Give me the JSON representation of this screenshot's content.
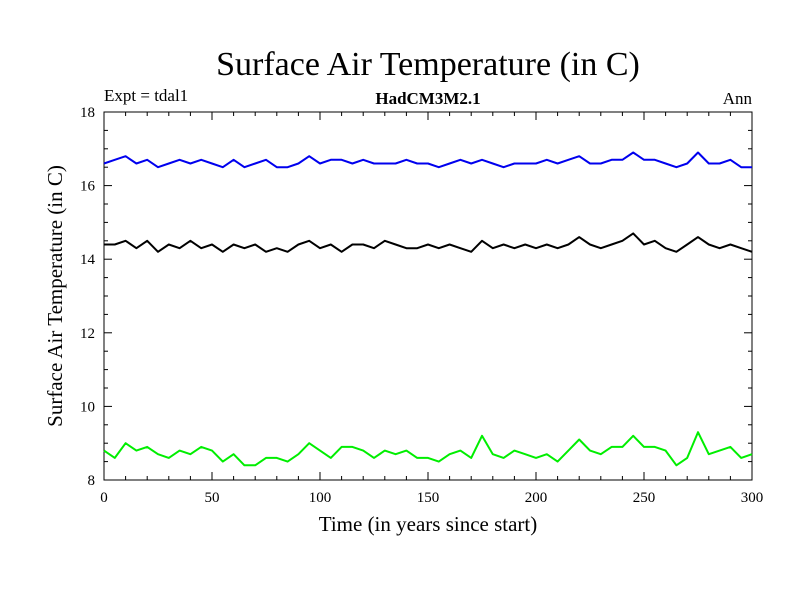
{
  "chart_data": {
    "type": "line",
    "title": "Surface Air Temperature (in C)",
    "subtitle_left": "Expt = tdal1",
    "subtitle_center": "HadCM3M2.1",
    "subtitle_right": "Ann",
    "xlabel": "Time (in years since start)",
    "ylabel": "Surface Air Temperature (in C)",
    "xlim": [
      0,
      300
    ],
    "ylim": [
      8,
      18
    ],
    "xticks": [
      0,
      50,
      100,
      150,
      200,
      250,
      300
    ],
    "yticks": [
      8,
      10,
      12,
      14,
      16,
      18
    ],
    "grid": false,
    "x": [
      0,
      5,
      10,
      15,
      20,
      25,
      30,
      35,
      40,
      45,
      50,
      55,
      60,
      65,
      70,
      75,
      80,
      85,
      90,
      95,
      100,
      105,
      110,
      115,
      120,
      125,
      130,
      135,
      140,
      145,
      150,
      155,
      160,
      165,
      170,
      175,
      180,
      185,
      190,
      195,
      200,
      205,
      210,
      215,
      220,
      225,
      230,
      235,
      240,
      245,
      250,
      255,
      260,
      265,
      270,
      275,
      280,
      285,
      290,
      295,
      300
    ],
    "series": [
      {
        "name": "upper (blue)",
        "color": "#0000ee",
        "values": [
          16.6,
          16.7,
          16.8,
          16.6,
          16.7,
          16.5,
          16.6,
          16.7,
          16.6,
          16.7,
          16.6,
          16.5,
          16.7,
          16.5,
          16.6,
          16.7,
          16.5,
          16.5,
          16.6,
          16.8,
          16.6,
          16.7,
          16.7,
          16.6,
          16.7,
          16.6,
          16.6,
          16.6,
          16.7,
          16.6,
          16.6,
          16.5,
          16.6,
          16.7,
          16.6,
          16.7,
          16.6,
          16.5,
          16.6,
          16.6,
          16.6,
          16.7,
          16.6,
          16.7,
          16.8,
          16.6,
          16.6,
          16.7,
          16.7,
          16.9,
          16.7,
          16.7,
          16.6,
          16.5,
          16.6,
          16.9,
          16.6,
          16.6,
          16.7,
          16.5,
          16.5
        ]
      },
      {
        "name": "middle (black)",
        "color": "#000000",
        "values": [
          14.4,
          14.4,
          14.5,
          14.3,
          14.5,
          14.2,
          14.4,
          14.3,
          14.5,
          14.3,
          14.4,
          14.2,
          14.4,
          14.3,
          14.4,
          14.2,
          14.3,
          14.2,
          14.4,
          14.5,
          14.3,
          14.4,
          14.2,
          14.4,
          14.4,
          14.3,
          14.5,
          14.4,
          14.3,
          14.3,
          14.4,
          14.3,
          14.4,
          14.3,
          14.2,
          14.5,
          14.3,
          14.4,
          14.3,
          14.4,
          14.3,
          14.4,
          14.3,
          14.4,
          14.6,
          14.4,
          14.3,
          14.4,
          14.5,
          14.7,
          14.4,
          14.5,
          14.3,
          14.2,
          14.4,
          14.6,
          14.4,
          14.3,
          14.4,
          14.3,
          14.2
        ]
      },
      {
        "name": "lower (green)",
        "color": "#00ee00",
        "values": [
          8.8,
          8.6,
          9.0,
          8.8,
          8.9,
          8.7,
          8.6,
          8.8,
          8.7,
          8.9,
          8.8,
          8.5,
          8.7,
          8.4,
          8.4,
          8.6,
          8.6,
          8.5,
          8.7,
          9.0,
          8.8,
          8.6,
          8.9,
          8.9,
          8.8,
          8.6,
          8.8,
          8.7,
          8.8,
          8.6,
          8.6,
          8.5,
          8.7,
          8.8,
          8.6,
          9.2,
          8.7,
          8.6,
          8.8,
          8.7,
          8.6,
          8.7,
          8.5,
          8.8,
          9.1,
          8.8,
          8.7,
          8.9,
          8.9,
          9.2,
          8.9,
          8.9,
          8.8,
          8.4,
          8.6,
          9.3,
          8.7,
          8.8,
          8.9,
          8.6,
          8.7
        ]
      }
    ]
  }
}
